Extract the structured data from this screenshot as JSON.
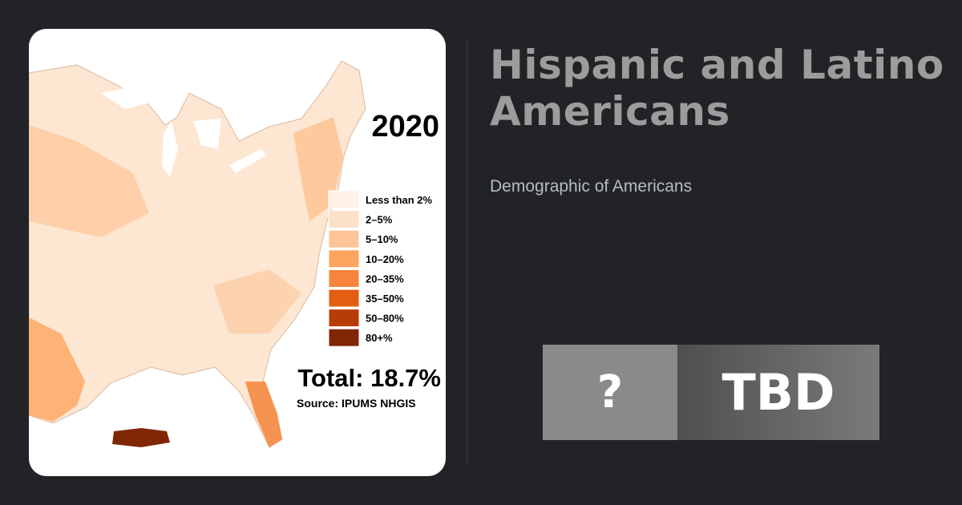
{
  "card": {
    "title": "Hispanic and Latino Americans",
    "subtitle": "Demographic of Americans",
    "badge": {
      "left": "?",
      "right": "TBD"
    },
    "map": {
      "year": "2020",
      "total": "Total: 18.7%",
      "source": "Source: IPUMS NHGIS",
      "legend": [
        {
          "label": "Less than 2%",
          "color": "#fff1e6"
        },
        {
          "label": "2–5%",
          "color": "#fde0c8"
        },
        {
          "label": "5–10%",
          "color": "#fdc597"
        },
        {
          "label": "10–20%",
          "color": "#fda55f"
        },
        {
          "label": "20–35%",
          "color": "#f6843a"
        },
        {
          "label": "35–50%",
          "color": "#e45e12"
        },
        {
          "label": "50–80%",
          "color": "#b83c05"
        },
        {
          "label": "80+%",
          "color": "#7f2704"
        }
      ]
    }
  }
}
